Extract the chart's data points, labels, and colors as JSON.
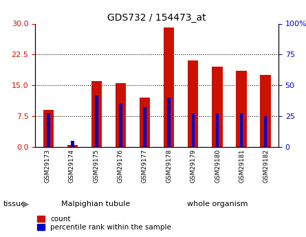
{
  "title": "GDS732 / 154473_at",
  "categories": [
    "GSM29173",
    "GSM29174",
    "GSM29175",
    "GSM29176",
    "GSM29177",
    "GSM29178",
    "GSM29179",
    "GSM29180",
    "GSM29181",
    "GSM29182"
  ],
  "count_values": [
    9.0,
    0.5,
    16.0,
    15.5,
    12.0,
    29.0,
    21.0,
    19.5,
    18.5,
    17.5
  ],
  "percentile_values": [
    27,
    5,
    42,
    35,
    32,
    40,
    27,
    27,
    27,
    25
  ],
  "left_ylim": [
    0,
    30
  ],
  "right_ylim": [
    0,
    100
  ],
  "left_yticks": [
    0,
    7.5,
    15,
    22.5,
    30
  ],
  "right_yticks": [
    0,
    25,
    50,
    75,
    100
  ],
  "bar_color_red": "#cc1100",
  "bar_color_blue": "#0000cc",
  "bar_width": 0.45,
  "blue_bar_width": 0.12,
  "tissue_groups": {
    "Malpighian tubule": {
      "indices": [
        0,
        1,
        2,
        3,
        4
      ],
      "color": "#99ee99"
    },
    "whole organism": {
      "indices": [
        5,
        6,
        7,
        8,
        9
      ],
      "color": "#44cc44"
    }
  },
  "tissue_label_color": "#aaddaa",
  "legend_count": "count",
  "legend_percentile": "percentile rank within the sample",
  "tissue_label": "tissue",
  "tick_bg": "#cccccc",
  "axis_bg": "#ffffff"
}
